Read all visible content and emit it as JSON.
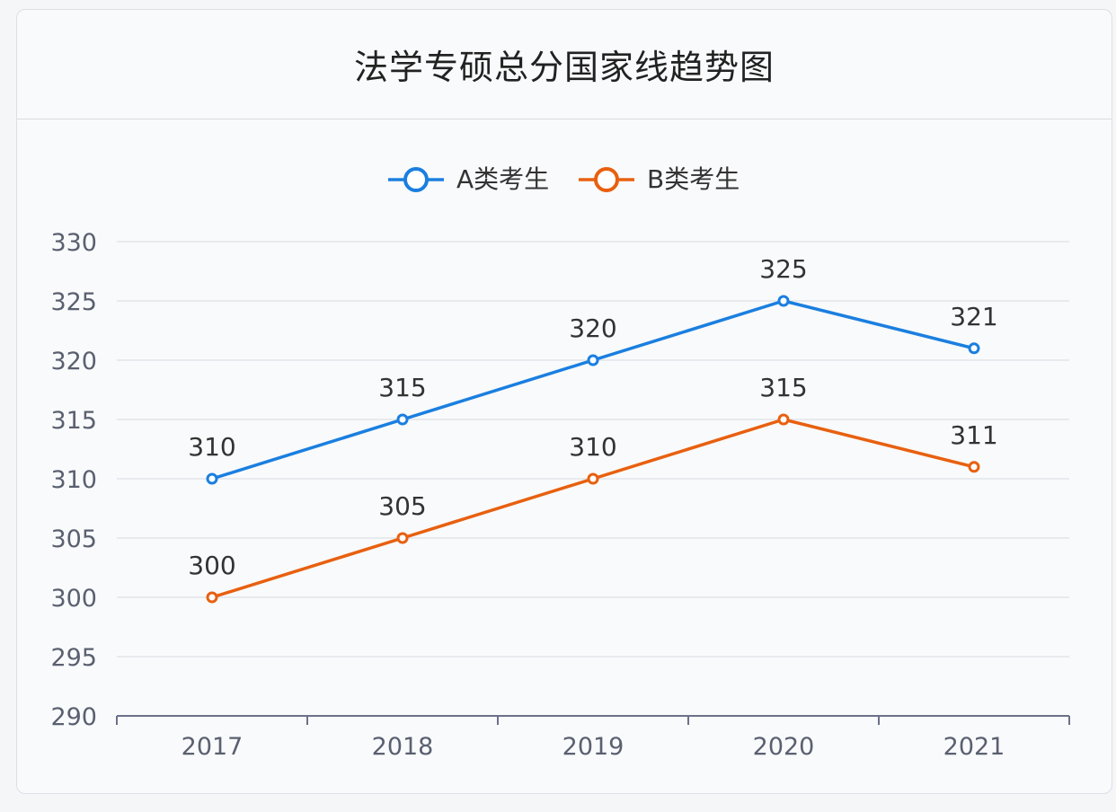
{
  "chart_data": {
    "type": "line",
    "title": "法学专硕总分国家线趋势图",
    "categories": [
      "2017",
      "2018",
      "2019",
      "2020",
      "2021"
    ],
    "series": [
      {
        "name": "A类考生",
        "values": [
          310,
          315,
          320,
          325,
          321
        ],
        "color": "#1a7fe0"
      },
      {
        "name": "B类考生",
        "values": [
          300,
          305,
          310,
          315,
          311
        ],
        "color": "#e8600f"
      }
    ],
    "ylim": [
      290,
      330
    ],
    "yticks": [
      "290",
      "295",
      "300",
      "305",
      "310",
      "315",
      "320",
      "325",
      "330"
    ],
    "xlabel": "",
    "ylabel": "",
    "grid": true,
    "legend": "top-center"
  }
}
